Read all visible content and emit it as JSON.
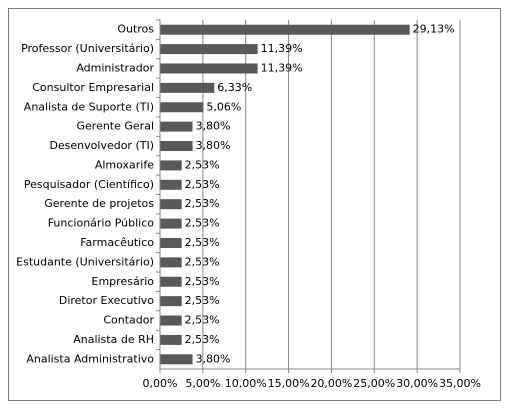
{
  "chart_data": {
    "type": "bar",
    "orientation": "horizontal",
    "categories": [
      "Outros",
      "Professor (Universitário)",
      "Administrador",
      "Consultor Empresarial",
      "Analista de Suporte (TI)",
      "Gerente Geral",
      "Desenvolvedor (TI)",
      "Almoxarife",
      "Pesquisador (Científico)",
      "Gerente de projetos",
      "Funcionário Público",
      "Farmacêutico",
      "Estudante (Universitário)",
      "Empresário",
      "Diretor Executivo",
      "Contador",
      "Analista de RH",
      "Analista Administrativo"
    ],
    "values": [
      29.13,
      11.39,
      11.39,
      6.33,
      5.06,
      3.8,
      3.8,
      2.53,
      2.53,
      2.53,
      2.53,
      2.53,
      2.53,
      2.53,
      2.53,
      2.53,
      2.53,
      3.8
    ],
    "value_labels": [
      "29,13%",
      "11,39%",
      "11,39%",
      "6,33%",
      "5,06%",
      "3,80%",
      "3,80%",
      "2,53%",
      "2,53%",
      "2,53%",
      "2,53%",
      "2,53%",
      "2,53%",
      "2,53%",
      "2,53%",
      "2,53%",
      "2,53%",
      "3,80%"
    ],
    "color": "#595959",
    "xlim": [
      0,
      35
    ],
    "xticks": [
      {
        "value": 0,
        "label": "0,00%"
      },
      {
        "value": 5,
        "label": "5,00%"
      },
      {
        "value": 10,
        "label": "10,00%"
      },
      {
        "value": 15,
        "label": "15,00%"
      },
      {
        "value": 20,
        "label": "20,00%"
      },
      {
        "value": 25,
        "label": "25,00%"
      },
      {
        "value": 30,
        "label": "30,00%"
      },
      {
        "value": 35,
        "label": "35,00%"
      }
    ],
    "grid": true
  }
}
